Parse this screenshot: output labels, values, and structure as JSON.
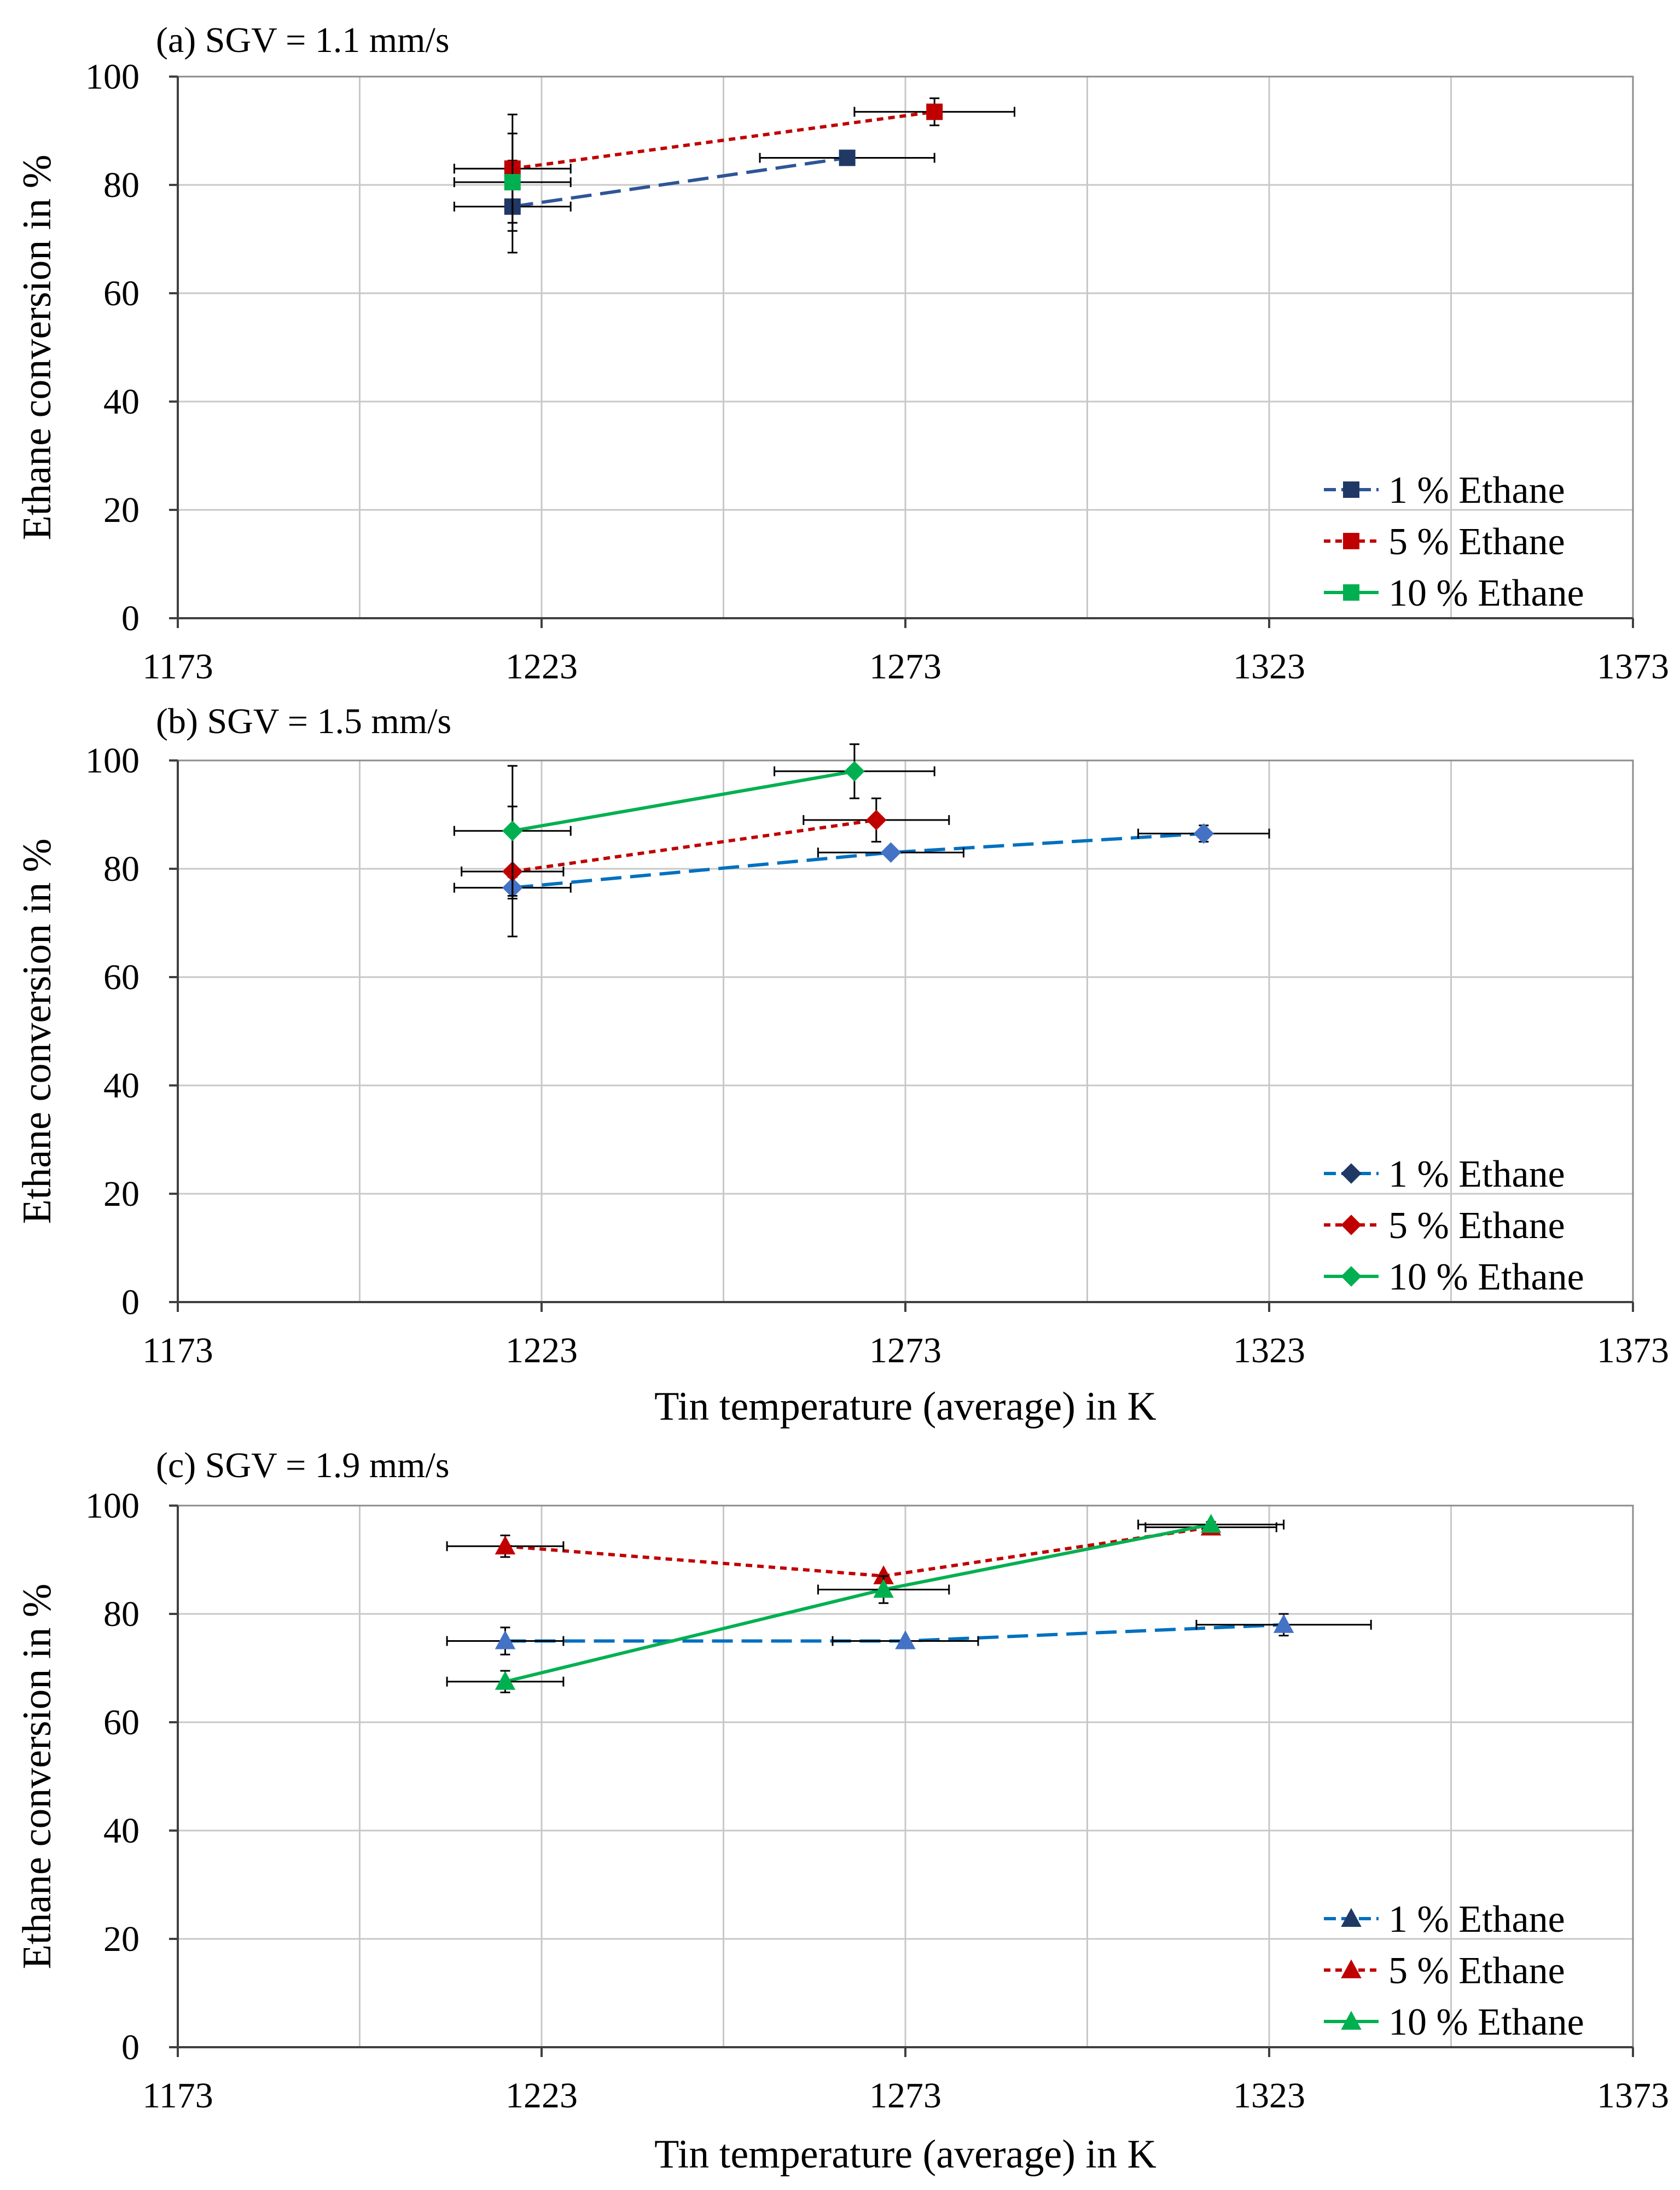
{
  "chart_data": [
    {
      "panel": "a",
      "type": "scatter",
      "title": "(a) SGV = 1.1 mm/s",
      "xlabel": "",
      "ylabel": "Ethane conversion in %",
      "xlim": [
        1173,
        1373
      ],
      "ylim": [
        0,
        100
      ],
      "xticks": [
        "1173",
        "1223",
        "1273",
        "1323",
        "1373"
      ],
      "yticks": [
        "0",
        "20",
        "40",
        "60",
        "80",
        "100"
      ],
      "grid": true,
      "legend_position": "bottom-right",
      "series": [
        {
          "name": "1 % Ethane",
          "color": "#203864",
          "line_color": "#2e5597",
          "marker": "square",
          "dash": "long-dash",
          "points": [
            {
              "x": 1219,
              "y": 76,
              "xerr": 8,
              "yerr": 8.5
            },
            {
              "x": 1265,
              "y": 85,
              "xerr": 12,
              "yerr": 0
            }
          ]
        },
        {
          "name": "5 % Ethane",
          "color": "#c00000",
          "line_color": "#c00000",
          "marker": "square",
          "dash": "short-dash",
          "points": [
            {
              "x": 1219,
              "y": 83,
              "xerr": 8,
              "yerr": 10
            },
            {
              "x": 1277,
              "y": 93.5,
              "xerr": 11,
              "yerr": 2.5
            }
          ]
        },
        {
          "name": "10 % Ethane",
          "color": "#00b050",
          "line_color": "#00b050",
          "marker": "square",
          "dash": "solid",
          "points": [
            {
              "x": 1219,
              "y": 80.5,
              "xerr": 8,
              "yerr": 9
            }
          ]
        }
      ]
    },
    {
      "panel": "b",
      "type": "scatter",
      "title": "(b) SGV = 1.5 mm/s",
      "xlabel": "Tin temperature (average) in K",
      "ylabel": "Ethane conversion in %",
      "xlim": [
        1173,
        1373
      ],
      "ylim": [
        0,
        100
      ],
      "xticks": [
        "1173",
        "1223",
        "1273",
        "1323",
        "1373"
      ],
      "yticks": [
        "0",
        "20",
        "40",
        "60",
        "80",
        "100"
      ],
      "grid": true,
      "legend_position": "bottom-right",
      "series": [
        {
          "name": "1 % Ethane",
          "color": "#4472c4",
          "line_color": "#0070c0",
          "legend_color": "#203864",
          "marker": "diamond",
          "dash": "long-dash",
          "points": [
            {
              "x": 1219,
              "y": 76.5,
              "xerr": 8,
              "yerr": 2
            },
            {
              "x": 1271,
              "y": 83,
              "xerr": 10,
              "yerr": 0
            },
            {
              "x": 1314,
              "y": 86.5,
              "xerr": 9,
              "yerr": 1.5
            }
          ]
        },
        {
          "name": "5 % Ethane",
          "color": "#c00000",
          "line_color": "#c00000",
          "marker": "diamond",
          "dash": "short-dash",
          "points": [
            {
              "x": 1219,
              "y": 79.5,
              "xerr": 7,
              "yerr": 12
            },
            {
              "x": 1269,
              "y": 89,
              "xerr": 10,
              "yerr": 4
            }
          ]
        },
        {
          "name": "10 % Ethane",
          "color": "#00b050",
          "line_color": "#00b050",
          "marker": "diamond",
          "dash": "solid",
          "points": [
            {
              "x": 1219,
              "y": 87,
              "xerr": 8,
              "yerr": 12
            },
            {
              "x": 1266,
              "y": 98,
              "xerr": 11,
              "yerr": 5
            }
          ]
        }
      ]
    },
    {
      "panel": "c",
      "type": "scatter",
      "title": "(c) SGV = 1.9 mm/s",
      "xlabel": "Tin temperature (average) in K",
      "ylabel": "Ethane conversion in %",
      "xlim": [
        1173,
        1373
      ],
      "ylim": [
        0,
        100
      ],
      "xticks": [
        "1173",
        "1223",
        "1273",
        "1323",
        "1373"
      ],
      "yticks": [
        "0",
        "20",
        "40",
        "60",
        "80",
        "100"
      ],
      "grid": true,
      "legend_position": "bottom-right",
      "series": [
        {
          "name": "1 % Ethane",
          "color": "#4472c4",
          "line_color": "#0070c0",
          "legend_color": "#203864",
          "marker": "triangle",
          "dash": "long-dash",
          "points": [
            {
              "x": 1218,
              "y": 75,
              "xerr": 8,
              "yerr": 2.5
            },
            {
              "x": 1273,
              "y": 75,
              "xerr": 10,
              "yerr": 0
            },
            {
              "x": 1325,
              "y": 78,
              "xerr": 12,
              "yerr": 2
            }
          ]
        },
        {
          "name": "5 % Ethane",
          "color": "#c00000",
          "line_color": "#c00000",
          "marker": "triangle",
          "dash": "short-dash",
          "points": [
            {
              "x": 1218,
              "y": 92.5,
              "xerr": 8,
              "yerr": 2
            },
            {
              "x": 1270,
              "y": 87,
              "xerr": 0,
              "yerr": 0
            },
            {
              "x": 1315,
              "y": 96,
              "xerr": 9,
              "yerr": 1
            }
          ]
        },
        {
          "name": "10 % Ethane",
          "color": "#00b050",
          "line_color": "#00b050",
          "marker": "triangle",
          "dash": "solid",
          "points": [
            {
              "x": 1218,
              "y": 67.5,
              "xerr": 8,
              "yerr": 2
            },
            {
              "x": 1270,
              "y": 84.5,
              "xerr": 9,
              "yerr": 2.5
            },
            {
              "x": 1315,
              "y": 96.5,
              "xerr": 10,
              "yerr": 0
            }
          ]
        }
      ]
    }
  ]
}
